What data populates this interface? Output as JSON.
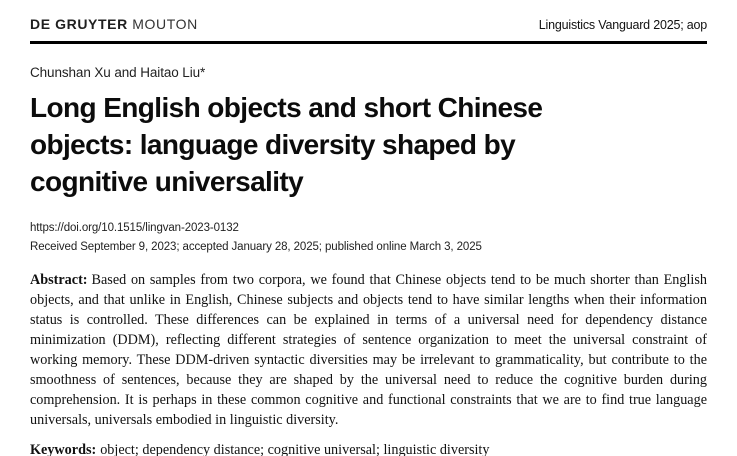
{
  "header": {
    "publisher_bold": "DE GRUYTER",
    "publisher_regular": "MOUTON",
    "journal_info": "Linguistics Vanguard 2025; aop"
  },
  "article": {
    "authors": "Chunshan Xu and Haitao Liu*",
    "title_lines": [
      "Long English objects and short Chinese",
      "objects: language diversity shaped by",
      "cognitive universality"
    ],
    "doi": "https://doi.org/10.1515/lingvan-2023-0132",
    "history": "Received September 9, 2023; accepted January 28, 2025; published online March 3, 2025",
    "abstract_label": "Abstract:",
    "abstract_text": "Based on samples from two corpora, we found that Chinese objects tend to be much shorter than English objects, and that unlike in English, Chinese subjects and objects tend to have similar lengths when their information status is controlled. These differences can be explained in terms of a universal need for dependency distance minimization (DDM), reflecting different strategies of sentence organization to meet the universal constraint of working memory. These DDM-driven syntactic diversities may be irrelevant to grammaticality, but contribute to the smoothness of sentences, because they are shaped by the universal need to reduce the cognitive burden during comprehension. It is perhaps in these common cognitive and functional constraints that we are to find true language universals, universals embodied in linguistic diversity.",
    "keywords_label": "Keywords:",
    "keywords_text": "object; dependency distance; cognitive universal; linguistic diversity"
  },
  "colors": {
    "text": "#111111",
    "rule": "#000000",
    "background": "#ffffff"
  }
}
